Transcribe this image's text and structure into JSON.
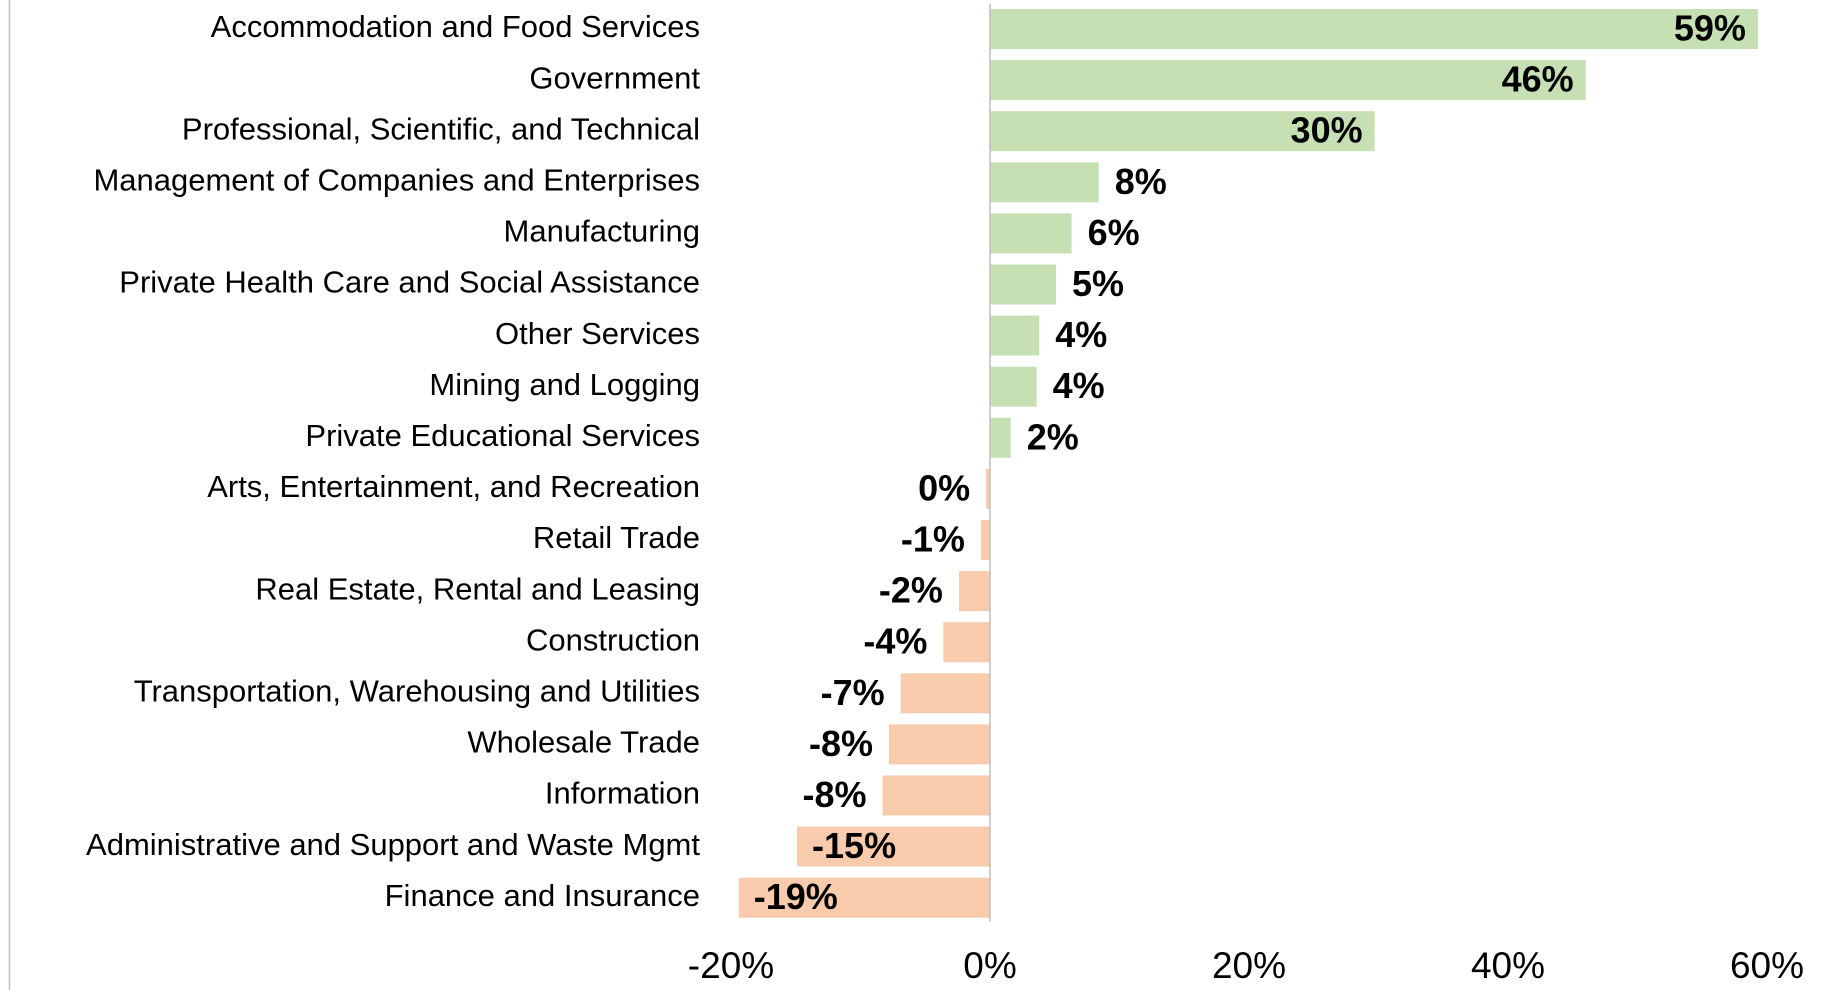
{
  "chart_data": {
    "type": "bar",
    "orientation": "horizontal",
    "categories": [
      "Accommodation and Food Services",
      "Government",
      "Professional, Scientific, and Technical",
      "Management of Companies and Enterprises",
      "Manufacturing",
      "Private Health Care and Social Assistance",
      "Other Services",
      "Mining and Logging",
      "Private Educational Services",
      "Arts, Entertainment, and Recreation",
      "Retail Trade",
      "Real Estate, Rental and Leasing",
      "Construction",
      "Transportation, Warehousing and Utilities",
      "Wholesale Trade",
      "Information",
      "Administrative and Support and Waste Mgmt",
      "Finance and Insurance"
    ],
    "values": [
      59.3,
      46,
      29.7,
      8.4,
      6.3,
      5.1,
      3.8,
      3.6,
      1.6,
      -0.3,
      -0.7,
      -2.4,
      -3.6,
      -6.9,
      -7.8,
      -8.3,
      -14.9,
      -19.4
    ],
    "value_labels": [
      "59%",
      "46%",
      "30%",
      "8%",
      "6%",
      "5%",
      "4%",
      "4%",
      "2%",
      "0%",
      "-1%",
      "-2%",
      "-4%",
      "-7%",
      "-8%",
      "-8%",
      "-15%",
      "-19%"
    ],
    "positive_color": "#c6e0b4",
    "negative_color": "#f8cbad",
    "xlim": [
      -20,
      60
    ],
    "xticks": [
      {
        "value": -20,
        "label": "-20%"
      },
      {
        "value": 0,
        "label": "0%"
      },
      {
        "value": 20,
        "label": "20%"
      },
      {
        "value": 40,
        "label": "40%"
      },
      {
        "value": 60,
        "label": "60%"
      }
    ],
    "grid": false
  }
}
